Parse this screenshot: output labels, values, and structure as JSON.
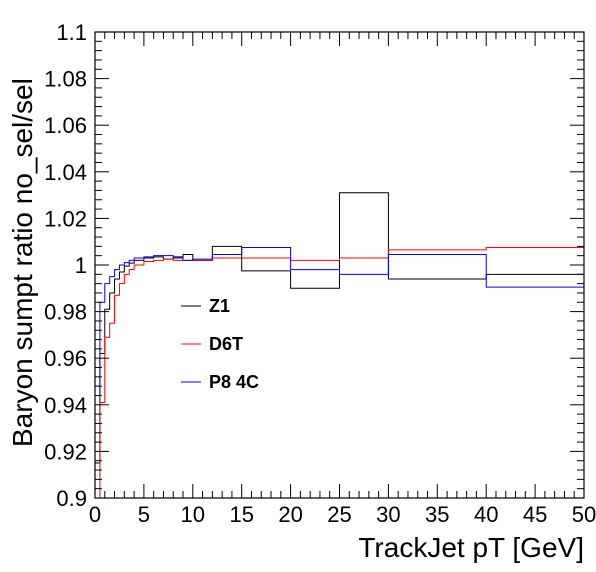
{
  "chart_data": {
    "type": "line",
    "xlabel": "TrackJet pT [GeV]",
    "ylabel": "Baryon sumpt ratio no_sel/sel",
    "xlim": [
      0,
      50
    ],
    "ylim": [
      0.9,
      1.1
    ],
    "x_ticks": [
      0,
      5,
      10,
      15,
      20,
      25,
      30,
      35,
      40,
      45,
      50
    ],
    "x_tick_labels": [
      "0",
      "5",
      "10",
      "15",
      "20",
      "25",
      "30",
      "35",
      "40",
      "45",
      "50"
    ],
    "y_ticks": [
      0.9,
      0.92,
      0.94,
      0.96,
      0.98,
      1.0,
      1.02,
      1.04,
      1.06,
      1.08,
      1.1
    ],
    "y_tick_labels": [
      "0.9",
      "0.92",
      "0.94",
      "0.96",
      "0.98",
      "1",
      "1.02",
      "1.04",
      "1.06",
      "1.08",
      "1.1"
    ],
    "grid": false,
    "legend_position": "middle-left",
    "bin_edges": [
      0,
      0.5,
      1,
      1.5,
      2,
      2.5,
      3,
      3.5,
      4,
      5,
      6,
      7,
      8,
      9,
      10,
      12,
      15,
      20,
      25,
      30,
      40,
      50
    ],
    "series": [
      {
        "name": "Z1",
        "color": "#000000",
        "values": [
          0.915,
          0.962,
          0.981,
          0.988,
          0.994,
          0.997,
          0.9995,
          1.0008,
          1.002,
          1.003,
          1.0035,
          1.0025,
          1.0035,
          1.0045,
          1.002,
          1.008,
          0.9975,
          0.99,
          1.031,
          0.994,
          0.996
        ]
      },
      {
        "name": "D6T",
        "color": "#ff0000",
        "values": [
          0.9,
          0.941,
          0.969,
          0.975,
          0.987,
          0.992,
          0.996,
          0.998,
          1.0,
          1.0015,
          1.002,
          1.0025,
          1.002,
          1.002,
          1.002,
          1.003,
          1.003,
          1.002,
          1.003,
          1.0065,
          1.0075
        ]
      },
      {
        "name": "P8 4C",
        "color": "#0000ff",
        "values": [
          0.944,
          0.984,
          0.992,
          0.995,
          0.998,
          1.0,
          1.001,
          1.002,
          1.003,
          1.0035,
          1.004,
          1.004,
          1.003,
          1.002,
          1.0025,
          1.0045,
          1.0075,
          0.998,
          0.996,
          1.0045,
          0.9905
        ]
      }
    ]
  }
}
